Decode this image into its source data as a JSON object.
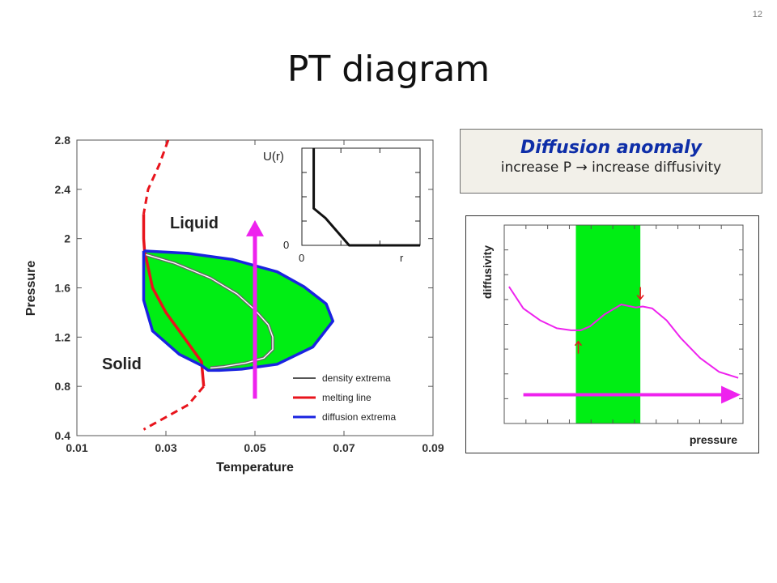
{
  "slide": {
    "number": "12",
    "title": "PT diagram"
  },
  "callout": {
    "title": "Diffusion anomaly",
    "subtitle": "increase P → increase diffusivity"
  },
  "chart_data": [
    {
      "type": "line",
      "xlabel": "Temperature",
      "ylabel": "Pressure",
      "xlim": [
        0.01,
        0.09
      ],
      "ylim": [
        0.4,
        2.8
      ],
      "xticks": [
        "0.01",
        "0.03",
        "0.05",
        "0.07",
        "0.09"
      ],
      "yticks": [
        "0.4",
        "0.8",
        "1.2",
        "1.6",
        "2",
        "2.4",
        "2.8"
      ],
      "region_labels": [
        "Liquid",
        "Solid"
      ],
      "legend": {
        "position": "bottom-right",
        "entries": [
          "density extrema",
          "melting line",
          "diffusion extrema"
        ]
      },
      "colors": {
        "density": "#555555",
        "melting": "#e8141c",
        "diffusion": "#1a23e0",
        "fill": "#00ee14",
        "arrow": "#ee22ee"
      },
      "series": [
        {
          "name": "melting line",
          "x": [
            0.0305,
            0.0285,
            0.026,
            0.025,
            0.025,
            0.0252,
            0.027,
            0.03,
            0.034,
            0.037,
            0.038,
            0.0385,
            0.035,
            0.03,
            0.025
          ],
          "y": [
            2.8,
            2.6,
            2.4,
            2.2,
            2.0,
            1.9,
            1.6,
            1.4,
            1.2,
            1.05,
            1.0,
            0.8,
            0.65,
            0.55,
            0.45
          ]
        },
        {
          "name": "diffusion extrema",
          "x": [
            0.025,
            0.035,
            0.045,
            0.055,
            0.061,
            0.066,
            0.0675,
            0.063,
            0.055,
            0.047,
            0.042,
            0.0395,
            0.038,
            0.033,
            0.027,
            0.025,
            0.025
          ],
          "y": [
            1.9,
            1.88,
            1.83,
            1.73,
            1.61,
            1.47,
            1.33,
            1.12,
            0.98,
            0.94,
            0.93,
            0.93,
            0.97,
            1.06,
            1.25,
            1.5,
            1.9
          ]
        },
        {
          "name": "density extrema",
          "x": [
            0.0255,
            0.032,
            0.04,
            0.046,
            0.05,
            0.053,
            0.054,
            0.054,
            0.052,
            0.048,
            0.043,
            0.04
          ],
          "y": [
            1.87,
            1.8,
            1.68,
            1.55,
            1.42,
            1.3,
            1.2,
            1.1,
            1.03,
            0.99,
            0.96,
            0.95
          ]
        }
      ],
      "arrow": {
        "x": 0.05,
        "y_from": 0.7,
        "y_to": 2.15
      },
      "inset": {
        "ylabel": "U(r)",
        "xlabel": "r",
        "origin_x": "0",
        "origin_y": "0",
        "potential": {
          "x": [
            0.1,
            0.1,
            0.1,
            0.2,
            0.4,
            1.0
          ],
          "y": [
            1.0,
            0.62,
            0.38,
            0.28,
            0.0,
            0.0
          ]
        }
      }
    },
    {
      "type": "line",
      "xlabel": "pressure",
      "ylabel": "diffusivity",
      "xlim": [
        0,
        1
      ],
      "ylim": [
        0,
        1
      ],
      "band": [
        0.3,
        0.57
      ],
      "series": [
        {
          "name": "diffusivity",
          "x": [
            0.02,
            0.08,
            0.15,
            0.22,
            0.28,
            0.32,
            0.36,
            0.42,
            0.49,
            0.55,
            0.58,
            0.62,
            0.68,
            0.74,
            0.82,
            0.9,
            0.98
          ],
          "y": [
            0.69,
            0.58,
            0.52,
            0.48,
            0.47,
            0.47,
            0.49,
            0.55,
            0.6,
            0.585,
            0.59,
            0.58,
            0.52,
            0.43,
            0.33,
            0.26,
            0.23
          ]
        }
      ],
      "markers": [
        {
          "x": 0.31,
          "y": 0.385,
          "dir": "up"
        },
        {
          "x": 0.57,
          "y": 0.655,
          "dir": "down"
        }
      ],
      "arrow": {
        "y": 0.145,
        "x_from": 0.08,
        "x_to": 0.99
      },
      "colors": {
        "curve": "#ee22ee",
        "band": "#00ee14",
        "marker": "#e8141c",
        "arrow": "#ee22ee"
      }
    }
  ]
}
